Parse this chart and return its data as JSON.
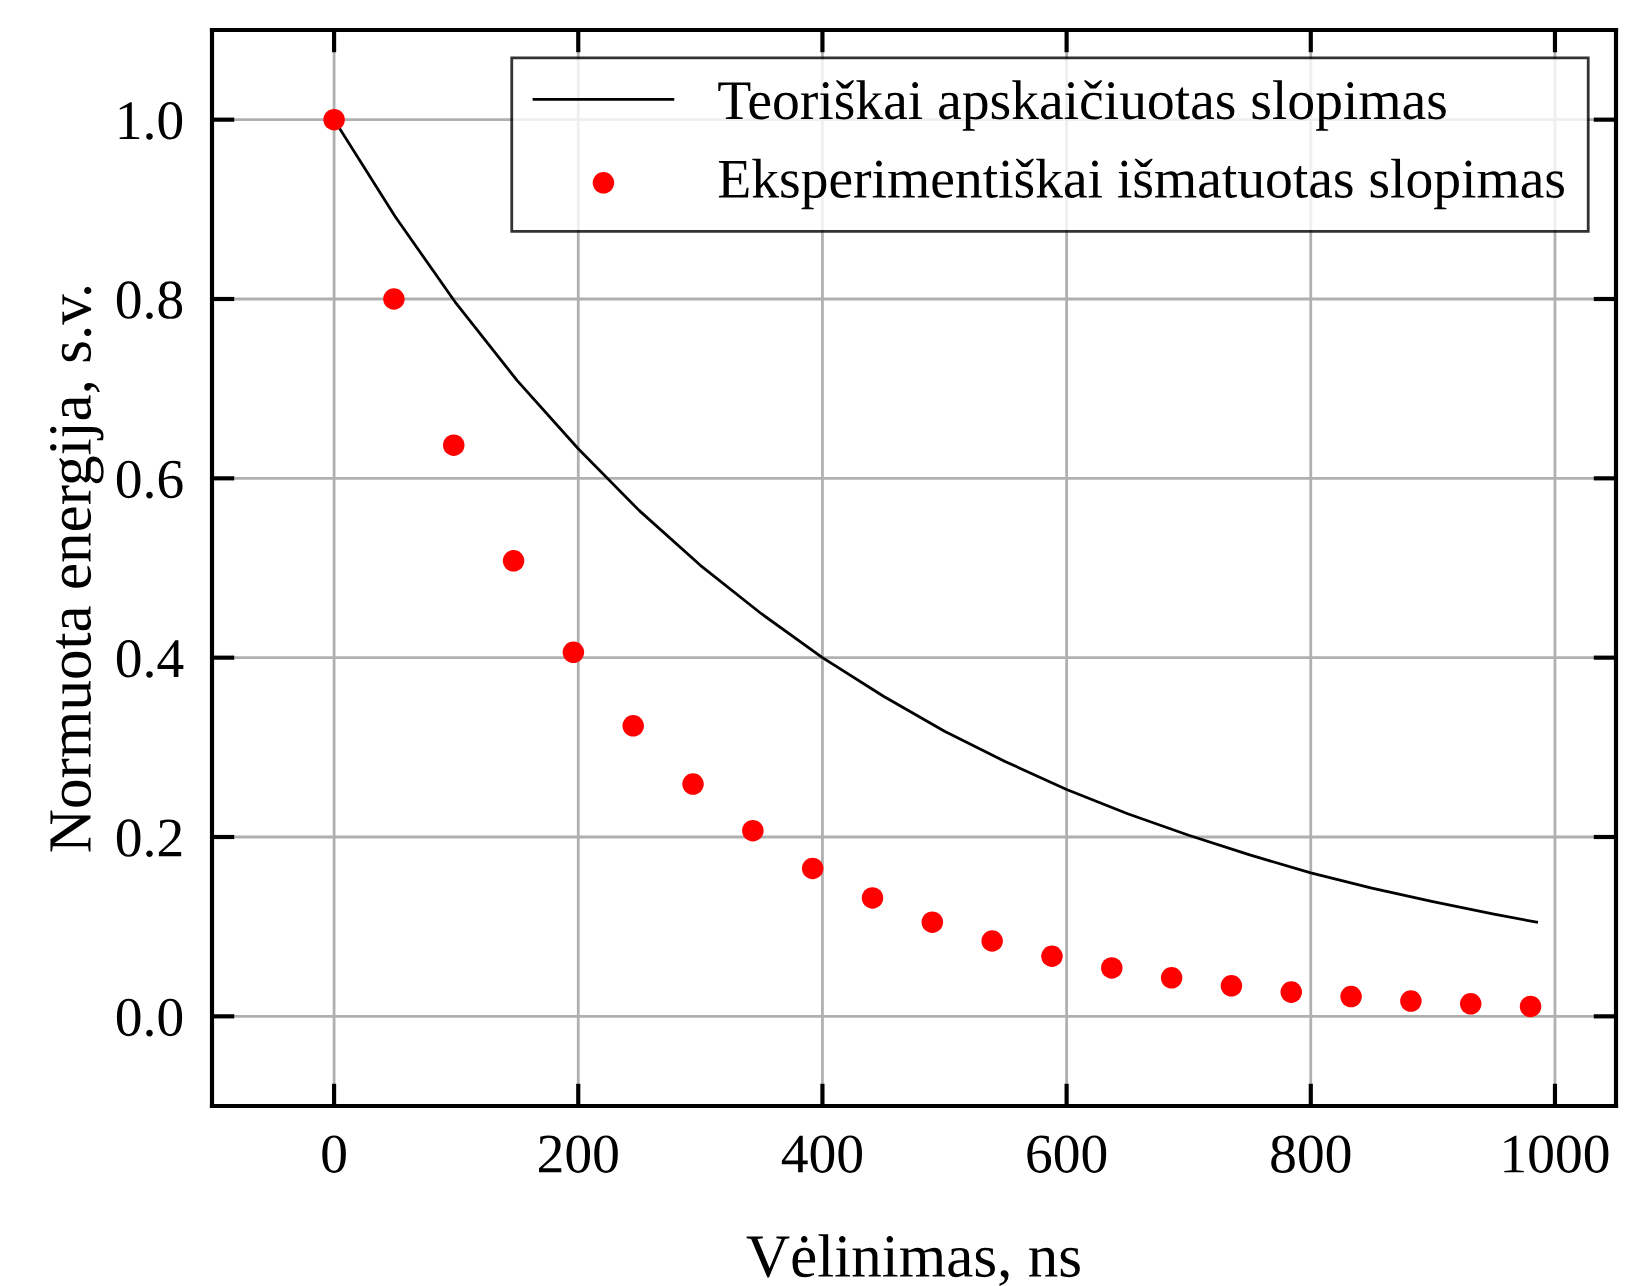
{
  "chart_data": {
    "type": "scatter",
    "xlabel": "Vėlinimas, ns",
    "ylabel": "Normuota energija, s.v.",
    "series": [
      {
        "name": "Teoriškai apskaičiuotas slopimas",
        "type": "line",
        "color": "#000000",
        "marker": "none",
        "x": [
          0,
          50,
          100,
          150,
          200,
          250,
          300,
          350,
          400,
          450,
          500,
          550,
          600,
          650,
          700,
          750,
          800,
          850,
          900,
          950,
          985
        ],
        "values": [
          1.0,
          0.892,
          0.795,
          0.709,
          0.633,
          0.564,
          0.503,
          0.449,
          0.4,
          0.357,
          0.318,
          0.284,
          0.253,
          0.226,
          0.202,
          0.18,
          0.16,
          0.143,
          0.128,
          0.114,
          0.105
        ]
      },
      {
        "name": "Eksperimentiškai išmatuotas slopimas",
        "color": "#ff0000",
        "marker": "circle",
        "x": [
          0,
          49,
          98,
          147,
          196,
          245,
          294,
          343,
          392,
          441,
          490,
          539,
          588,
          637,
          686,
          735,
          784,
          833,
          882,
          931,
          980
        ],
        "values": [
          1.0,
          0.8,
          0.637,
          0.508,
          0.406,
          0.324,
          0.259,
          0.207,
          0.165,
          0.132,
          0.105,
          0.084,
          0.067,
          0.054,
          0.043,
          0.034,
          0.027,
          0.022,
          0.017,
          0.014,
          0.011
        ]
      }
    ],
    "xlim": [
      -100,
      1050
    ],
    "xticks": [
      0,
      200,
      400,
      600,
      800,
      1000
    ],
    "ylim": [
      -0.1,
      1.1
    ],
    "yticks": [
      {
        "value": 0,
        "label": "0.0"
      },
      {
        "value": 0.2,
        "label": "0.2"
      },
      {
        "value": 0.4,
        "label": "0.4"
      },
      {
        "value": 0.6,
        "label": "0.6"
      },
      {
        "value": 0.8,
        "label": "0.8"
      },
      {
        "value": 1.0,
        "label": "1.0"
      }
    ],
    "grid": true,
    "legend": "top right"
  }
}
